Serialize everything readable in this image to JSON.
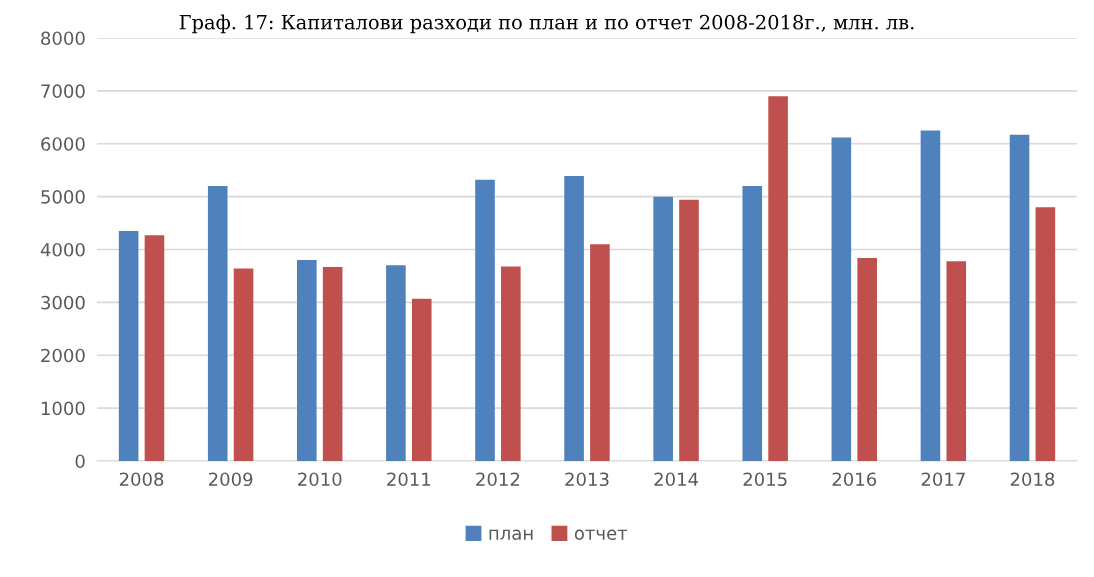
{
  "chart_data": {
    "type": "bar",
    "title": "Граф. 17: Капиталови разходи по план и по отчет 2008-2018г., млн. лв.",
    "categories": [
      "2008",
      "2009",
      "2010",
      "2011",
      "2012",
      "2013",
      "2014",
      "2015",
      "2016",
      "2017",
      "2018"
    ],
    "series": [
      {
        "name": "план",
        "color": "#4f81bd",
        "values": [
          4350,
          5200,
          3800,
          3700,
          5320,
          5390,
          5000,
          5200,
          6120,
          6250,
          6170
        ]
      },
      {
        "name": "отчет",
        "color": "#c0504d",
        "values": [
          4270,
          3640,
          3670,
          3070,
          3680,
          4100,
          4940,
          6900,
          3840,
          3780,
          4800
        ]
      }
    ],
    "ylim": [
      0,
      8000
    ],
    "yticks": [
      0,
      1000,
      2000,
      3000,
      4000,
      5000,
      6000,
      7000,
      8000
    ],
    "grid": "y",
    "legend": "bottom"
  }
}
